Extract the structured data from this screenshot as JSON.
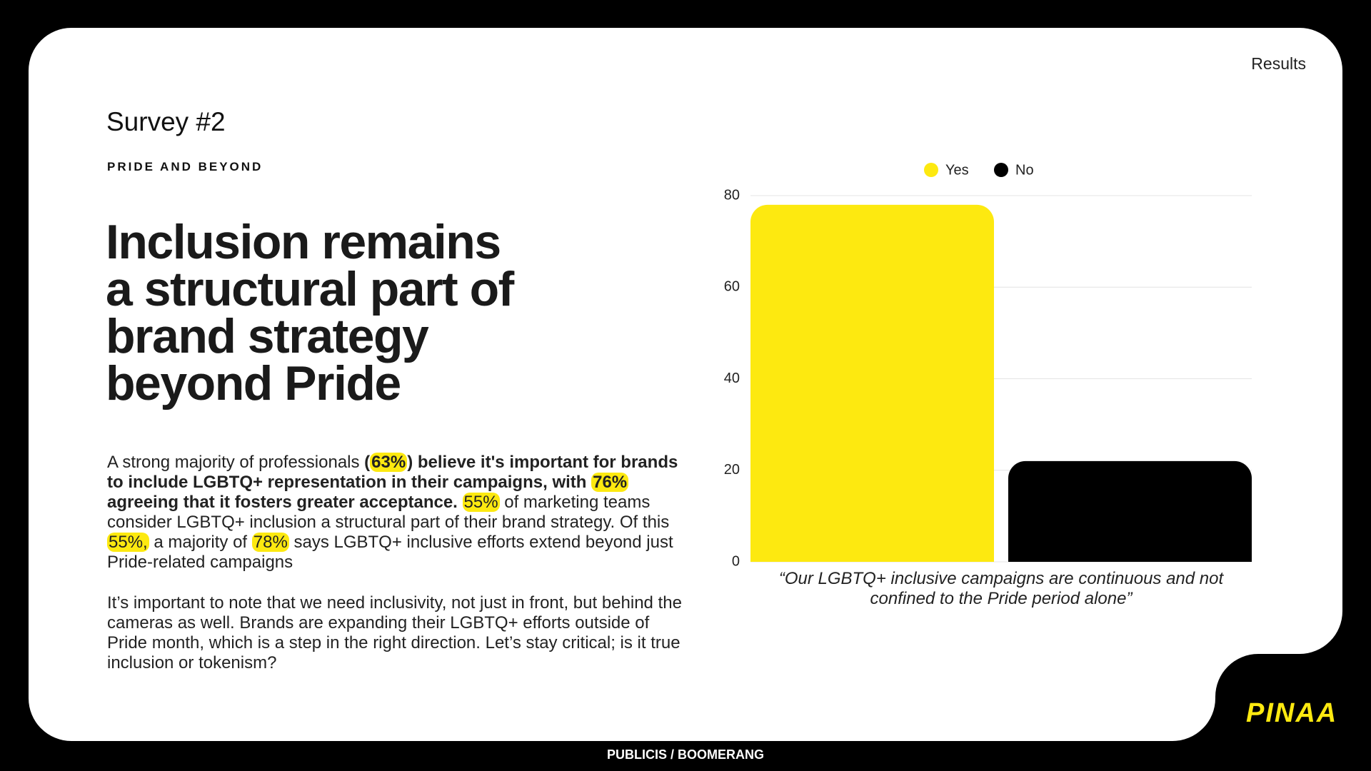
{
  "header": {
    "section": "Results",
    "survey": "Survey #2",
    "kicker": "PRIDE AND BEYOND"
  },
  "headline": [
    "Inclusion remains",
    "a structural part of",
    "brand strategy",
    "beyond Pride"
  ],
  "paragraphs": [
    [
      "A strong majority of professionals ",
      "(",
      "63%",
      ") believe it's important for brands to include LGBTQ+ representation in their campaigns, with ",
      "76%",
      " agreeing that it fosters greater acceptance.",
      " ",
      "55%",
      " of marketing teams consider LGBTQ+ inclusion a structural part of their brand strategy. Of this ",
      "55%,",
      " a majority of ",
      "78%",
      " says LGBTQ+ inclusive efforts extend beyond just Pride-related campaigns"
    ],
    "It’s important to note that we need inclusivity, not just in front, but behind the cameras as well. Brands are expanding their LGBTQ+ efforts outside of Pride month, which is a step in the right direction. Let’s stay critical; is it true inclusion or tokenism?"
  ],
  "footer": "PUBLICIS / BOOMERANG",
  "logo": "PINAA",
  "chart_data": {
    "type": "bar",
    "xlabel": "“Our LGBTQ+ inclusive campaigns are continuous and not confined to the Pride period alone”",
    "series": [
      {
        "name": "Yes",
        "color": "#fde910",
        "values": [
          78
        ]
      },
      {
        "name": "No",
        "color": "#000000",
        "values": [
          22
        ]
      }
    ],
    "ylim": [
      0,
      80
    ],
    "yticks": [
      0,
      20,
      40,
      60,
      80
    ],
    "grid": true
  }
}
